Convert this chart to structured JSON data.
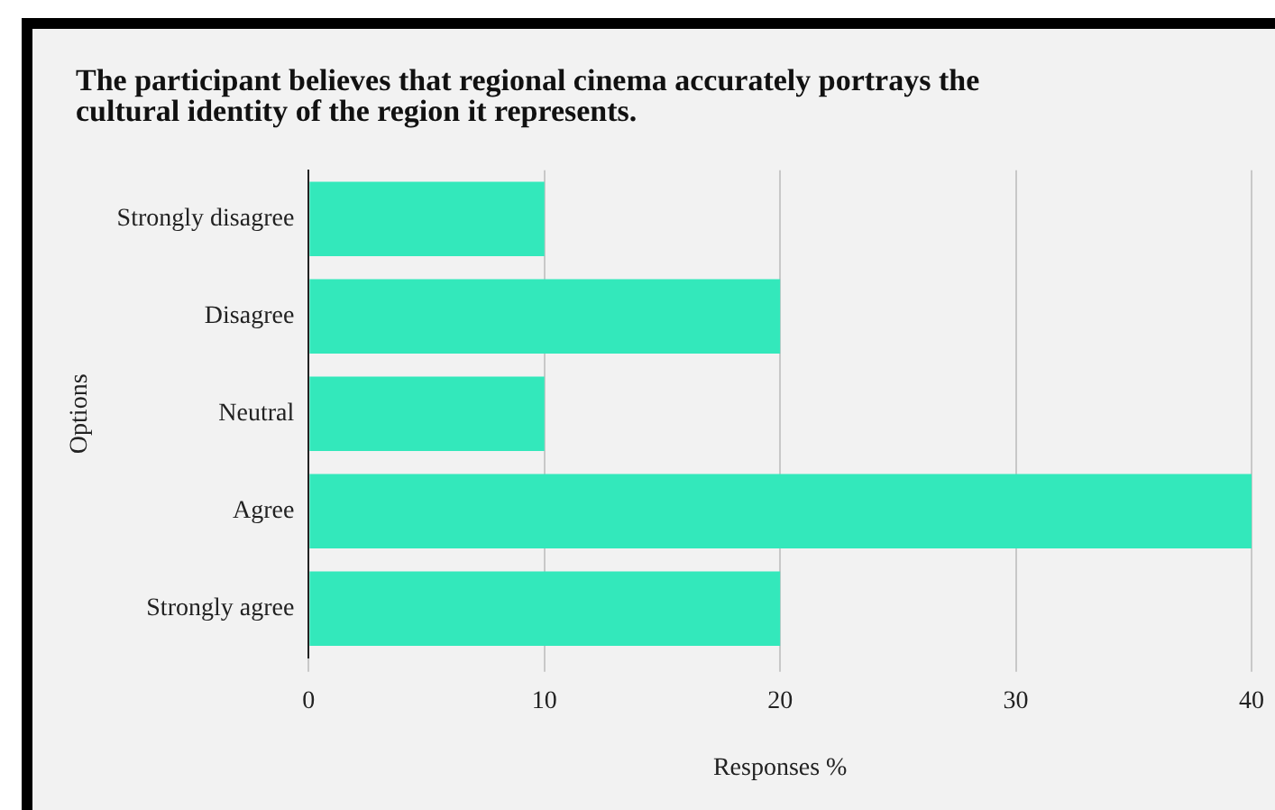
{
  "chart_data": {
    "type": "bar",
    "orientation": "horizontal",
    "title": "The participant believes that regional cinema accurately portrays the cultural identity of the region it represents.",
    "xlabel": "Responses %",
    "ylabel": "Options",
    "categories": [
      "Strongly disagree",
      "Disagree",
      "Neutral",
      "Agree",
      "Strongly agree"
    ],
    "values": [
      10,
      20,
      10,
      40,
      20
    ],
    "color": "#33e8bb",
    "xlim": [
      0,
      40
    ],
    "xticks": [
      0,
      10,
      20,
      30,
      40
    ],
    "grid": "x"
  }
}
